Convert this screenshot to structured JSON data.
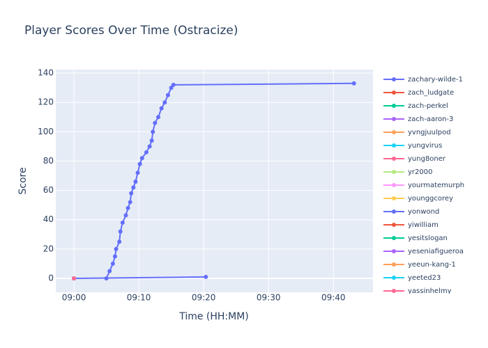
{
  "chart_data": {
    "type": "line",
    "title": "Player Scores Over Time (Ostracize)",
    "x_label": "Time (HH:MM)",
    "y_label": "Score",
    "xlim": [
      "08:57:12",
      "09:46:06"
    ],
    "ylim": [
      -9.5,
      142.4
    ],
    "xticks": [
      "09:00",
      "09:10",
      "09:20",
      "09:30",
      "09:40"
    ],
    "yticks": [
      0,
      20,
      40,
      60,
      80,
      100,
      120,
      140
    ],
    "grid": true,
    "series": [
      {
        "name": "zachary-wilde-1",
        "color": "#636efa",
        "x": [
          "09:05:00",
          "09:05:30",
          "09:06:00",
          "09:06:20",
          "09:06:30",
          "09:07:00",
          "09:07:10",
          "09:07:30",
          "09:08:00",
          "09:08:20",
          "09:08:40",
          "09:08:50",
          "09:09:10",
          "09:09:30",
          "09:09:50",
          "09:10:10",
          "09:10:30",
          "09:11:10",
          "09:11:40",
          "09:12:00",
          "09:12:10",
          "09:12:30",
          "09:13:00",
          "09:13:30",
          "09:14:00",
          "09:14:30",
          "09:15:00",
          "09:15:20",
          "09:43:10"
        ],
        "values": [
          0,
          5,
          10,
          15,
          20,
          25,
          32,
          38,
          43,
          48,
          52,
          58,
          62,
          66,
          72,
          78,
          82,
          86,
          90,
          94,
          100,
          106,
          110,
          116,
          120,
          125,
          130,
          132,
          133
        ]
      },
      {
        "name": "zach_ludgate",
        "color": "#EF553B",
        "x": [
          "09:00:00"
        ],
        "values": [
          0
        ]
      },
      {
        "name": "zach-perkel",
        "color": "#00cc96",
        "x": [
          "09:00:00"
        ],
        "values": [
          0
        ]
      },
      {
        "name": "zach-aaron-3",
        "color": "#ab63fa",
        "x": [
          "09:00:00"
        ],
        "values": [
          0
        ]
      },
      {
        "name": "yvngjuulpod",
        "color": "#FFA15A",
        "x": [
          "09:00:00"
        ],
        "values": [
          0
        ]
      },
      {
        "name": "yungvirus",
        "color": "#19d3f3",
        "x": [
          "09:00:00"
        ],
        "values": [
          0
        ]
      },
      {
        "name": "yung8oner",
        "color": "#FF6692",
        "x": [
          "09:00:00"
        ],
        "values": [
          0
        ]
      },
      {
        "name": "yr2000",
        "color": "#B6E880",
        "x": [
          "09:00:00"
        ],
        "values": [
          0
        ]
      },
      {
        "name": "yourmatemurph",
        "color": "#FF97FF",
        "x": [
          "09:00:00"
        ],
        "values": [
          0
        ]
      },
      {
        "name": "younggcorey",
        "color": "#FECB52",
        "x": [
          "09:00:00"
        ],
        "values": [
          0
        ]
      },
      {
        "name": "yonwond",
        "color": "#636efa",
        "x": [
          "09:00:00",
          "09:20:20"
        ],
        "values": [
          0,
          1
        ]
      },
      {
        "name": "yiwilliam",
        "color": "#EF553B",
        "x": [
          "09:00:00"
        ],
        "values": [
          0
        ]
      },
      {
        "name": "yesitslogan",
        "color": "#00cc96",
        "x": [
          "09:00:00"
        ],
        "values": [
          0
        ]
      },
      {
        "name": "yeseniafigueroa",
        "color": "#ab63fa",
        "x": [
          "09:00:00"
        ],
        "values": [
          0
        ]
      },
      {
        "name": "yeeun-kang-1",
        "color": "#FFA15A",
        "x": [
          "09:00:00"
        ],
        "values": [
          0
        ]
      },
      {
        "name": "yeeted23",
        "color": "#19d3f3",
        "x": [
          "09:00:00"
        ],
        "values": [
          0
        ]
      },
      {
        "name": "yassinhelmy",
        "color": "#FF6692",
        "x": [
          "09:00:00"
        ],
        "values": [
          0
        ]
      }
    ]
  }
}
